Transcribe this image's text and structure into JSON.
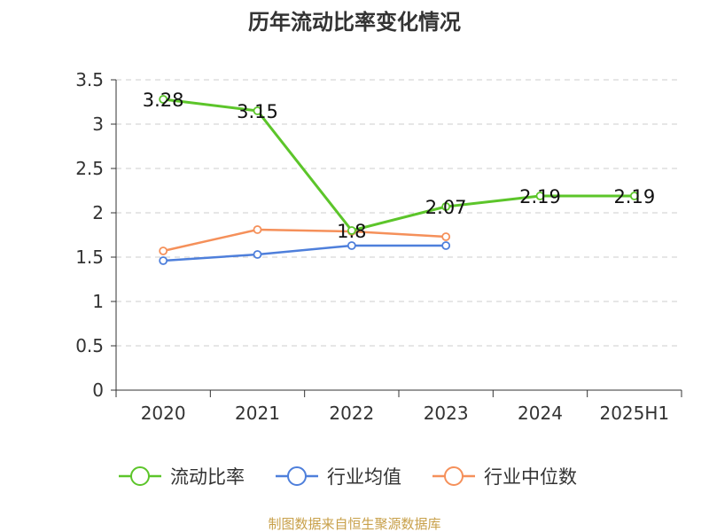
{
  "chart_data": {
    "type": "line",
    "title": "历年流动比率变化情况",
    "categories": [
      "2020",
      "2021",
      "2022",
      "2023",
      "2024",
      "2025H1"
    ],
    "ylim": [
      0,
      3.5
    ],
    "yticks": [
      "0",
      "0.5",
      "1",
      "1.5",
      "2",
      "2.5",
      "3",
      "3.5"
    ],
    "grid": true,
    "legend_position": "bottom",
    "series": [
      {
        "name": "流动比率",
        "color": "#5cc52a",
        "values": [
          3.28,
          3.15,
          1.8,
          2.07,
          2.19,
          2.19
        ],
        "labels": [
          "3.28",
          "3.15",
          "1.8",
          "2.07",
          "2.19",
          "2.19"
        ]
      },
      {
        "name": "行业均值",
        "color": "#4e7fdb",
        "values": [
          1.46,
          1.53,
          1.63,
          1.63,
          null,
          null
        ]
      },
      {
        "name": "行业中位数",
        "color": "#f5905a",
        "values": [
          1.57,
          1.81,
          1.79,
          1.73,
          null,
          null
        ]
      }
    ],
    "source": "制图数据来自恒生聚源数据库"
  }
}
